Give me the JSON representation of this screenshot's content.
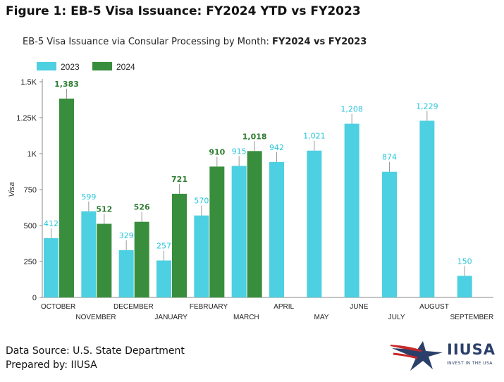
{
  "figure_title": "Figure 1: EB-5 Visa Issuance: FY2024 YTD vs FY2023",
  "footer": {
    "source": "Data Source: U.S. State Department",
    "prepared": "Prepared by: IIUSA"
  },
  "logo": {
    "name": "IIUSA",
    "tagline": "INVEST IN THE USA"
  },
  "colors": {
    "series_2023": "#4dd0e1",
    "series_2024": "#388e3c",
    "label_2023": "#26c6da",
    "label_2024": "#2e7d32",
    "logo_navy": "#2b3f6b",
    "logo_red": "#c62828"
  },
  "chart_data": {
    "type": "bar",
    "title_prefix": "EB-5 Visa Issuance via Consular Processing by Month: ",
    "title_bold": "FY2024 vs FY2023",
    "ylabel": "Visa",
    "xlabel": "",
    "ylim": [
      0,
      1500
    ],
    "yticks": [
      0,
      250,
      500,
      750,
      1000,
      1250,
      1500
    ],
    "ytick_labels": [
      "0",
      "250",
      "500",
      "750",
      "1K",
      "1.25K",
      "1.5K"
    ],
    "grid": false,
    "legend_position": "top-left",
    "categories": [
      "OCTOBER",
      "NOVEMBER",
      "DECEMBER",
      "JANUARY",
      "FEBRUARY",
      "MARCH",
      "APRIL",
      "MAY",
      "JUNE",
      "JULY",
      "AUGUST",
      "SEPTEMBER"
    ],
    "series": [
      {
        "name": "2023",
        "values": [
          412,
          599,
          329,
          257,
          570,
          915,
          942,
          1021,
          1208,
          874,
          1229,
          150
        ],
        "value_labels": [
          "412",
          "599",
          "329",
          "257",
          "570",
          "915",
          "942",
          "1,021",
          "1,208",
          "874",
          "1,229",
          "150"
        ]
      },
      {
        "name": "2024",
        "values": [
          1383,
          512,
          526,
          721,
          910,
          1018,
          null,
          null,
          null,
          null,
          null,
          null
        ],
        "value_labels": [
          "1,383",
          "512",
          "526",
          "721",
          "910",
          "1,018",
          "",
          "",
          "",
          "",
          "",
          ""
        ]
      }
    ]
  }
}
